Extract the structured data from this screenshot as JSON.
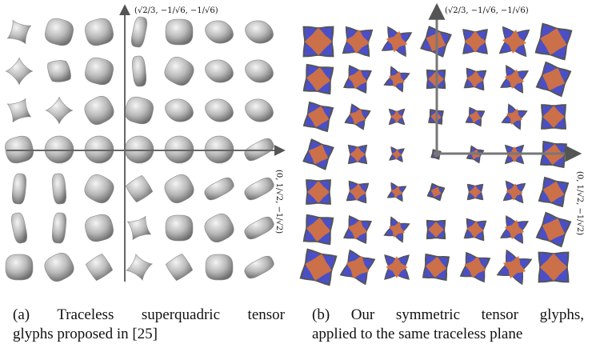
{
  "figure": {
    "panel_a": {
      "axis_y_label": "(√2/3, −1/√6, −1/√6)",
      "axis_x_label": "(0, 1/√2, −1/√2)",
      "caption_line1": "(a)  Traceless  superquadric  tensor",
      "caption_line2": "glyphs proposed in [25]",
      "grid_rows": 7,
      "grid_cols": 7,
      "glyph_color": "#b9b9b9"
    },
    "panel_b": {
      "axis_y_label": "(√2/3, −1/√6, −1/√6)",
      "axis_x_label": "(0, 1/√2, −1/√2)",
      "caption_line1": "(b)  Our  symmetric  tensor  glyphs,",
      "caption_line2": "applied to the same traceless plane",
      "grid_rows": 7,
      "grid_cols": 7,
      "glyph_colors": {
        "blue": "#4a4fc7",
        "orange": "#d9733a",
        "outline": "#555555"
      }
    }
  }
}
